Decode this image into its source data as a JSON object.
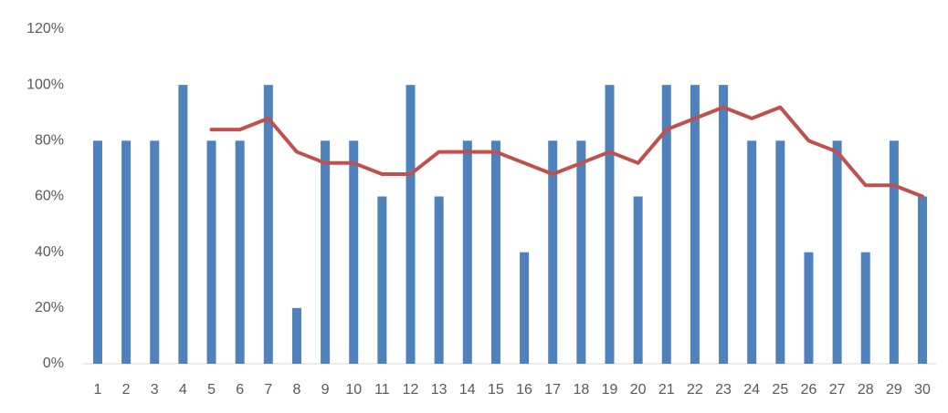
{
  "chart_data": {
    "type": "bar",
    "categories": [
      "1",
      "2",
      "3",
      "4",
      "5",
      "6",
      "7",
      "8",
      "9",
      "10",
      "11",
      "12",
      "13",
      "14",
      "15",
      "16",
      "17",
      "18",
      "19",
      "20",
      "21",
      "22",
      "23",
      "24",
      "25",
      "26",
      "27",
      "28",
      "29",
      "30"
    ],
    "series": [
      {
        "type": "bar",
        "color": "#4f81bd",
        "values": [
          80,
          80,
          80,
          100,
          80,
          80,
          100,
          20,
          80,
          80,
          60,
          100,
          60,
          80,
          80,
          40,
          80,
          80,
          100,
          60,
          100,
          100,
          100,
          80,
          80,
          40,
          80,
          40,
          80,
          60
        ]
      },
      {
        "type": "line",
        "color": "#c0504d",
        "values": [
          null,
          null,
          null,
          null,
          84,
          84,
          88,
          76,
          72,
          72,
          68,
          68,
          76,
          76,
          76,
          72,
          68,
          72,
          76,
          72,
          84,
          88,
          92,
          88,
          92,
          80,
          76,
          64,
          64,
          60
        ]
      }
    ],
    "ylim": [
      0,
      120
    ],
    "yticks": [
      {
        "value": 0,
        "label": "0%"
      },
      {
        "value": 20,
        "label": "20%"
      },
      {
        "value": 40,
        "label": "40%"
      },
      {
        "value": 60,
        "label": "60%"
      },
      {
        "value": 80,
        "label": "80%"
      },
      {
        "value": 100,
        "label": "100%"
      },
      {
        "value": 120,
        "label": "120%"
      }
    ],
    "grid": false
  }
}
